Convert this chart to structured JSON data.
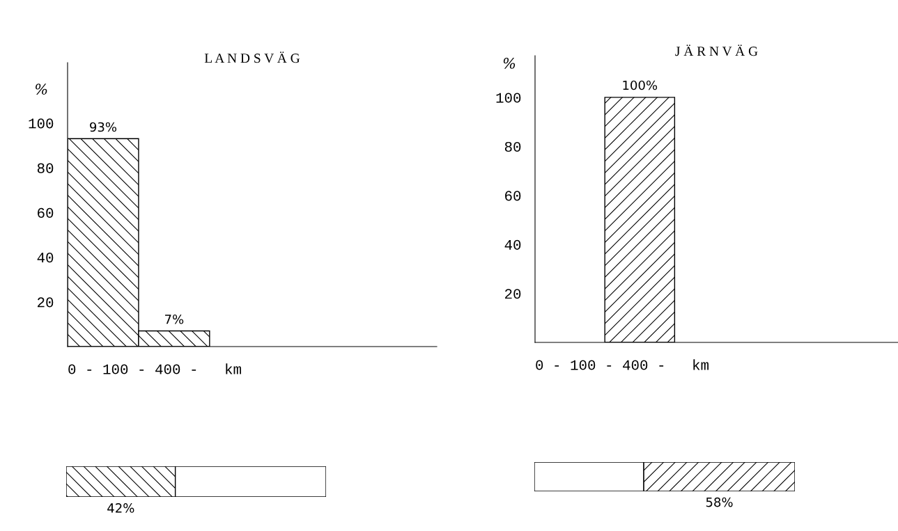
{
  "chart_data": [
    {
      "type": "bar",
      "title": "L A N D S V Ä G",
      "ylabel": "%",
      "xlabel": "0 - 100 - 400 -   km",
      "categories": [
        null,
        null,
        null,
        null,
        null
      ],
      "ylim": [
        0,
        127
      ],
      "yticks": [
        20,
        40,
        60,
        80,
        100
      ],
      "grid": false,
      "legend": false,
      "series": [
        {
          "color": "#000000",
          "values": [
            93,
            7,
            null,
            null,
            null
          ],
          "value_labels": [
            "93%",
            "7%",
            null,
            null,
            null
          ]
        }
      ]
    },
    {
      "type": "bar",
      "title": "J Ä R N V Ä G",
      "ylabel": "%",
      "xlabel": "0 - 100 - 400 -   km",
      "categories": [
        null,
        null,
        null,
        null,
        null
      ],
      "ylim": [
        0,
        117
      ],
      "yticks": [
        20,
        40,
        60,
        80,
        100
      ],
      "grid": false,
      "legend": false,
      "series": [
        {
          "color": "#000000",
          "values": [
            null,
            100,
            null,
            null,
            null
          ],
          "value_labels": [
            null,
            "100%",
            null,
            null,
            null
          ]
        }
      ]
    },
    {
      "type": "bar",
      "orientation": "horizontal",
      "stacked": true,
      "categories": [
        null
      ],
      "xlim": [
        0,
        100
      ],
      "tick_labels": false,
      "legend": false,
      "series": [
        {
          "color": "#000000",
          "values": [
            42
          ],
          "value_labels": [
            "42%"
          ]
        },
        {
          "color": "#ffffff",
          "values": [
            58
          ],
          "value_labels": [
            null
          ]
        }
      ]
    },
    {
      "type": "bar",
      "orientation": "horizontal",
      "stacked": true,
      "categories": [
        null
      ],
      "xlim": [
        0,
        100
      ],
      "tick_labels": false,
      "legend": false,
      "series": [
        {
          "color": "#ffffff",
          "values": [
            42
          ],
          "value_labels": [
            null
          ]
        },
        {
          "color": "#000000",
          "values": [
            58
          ],
          "value_labels": [
            "58%"
          ]
        }
      ]
    }
  ]
}
